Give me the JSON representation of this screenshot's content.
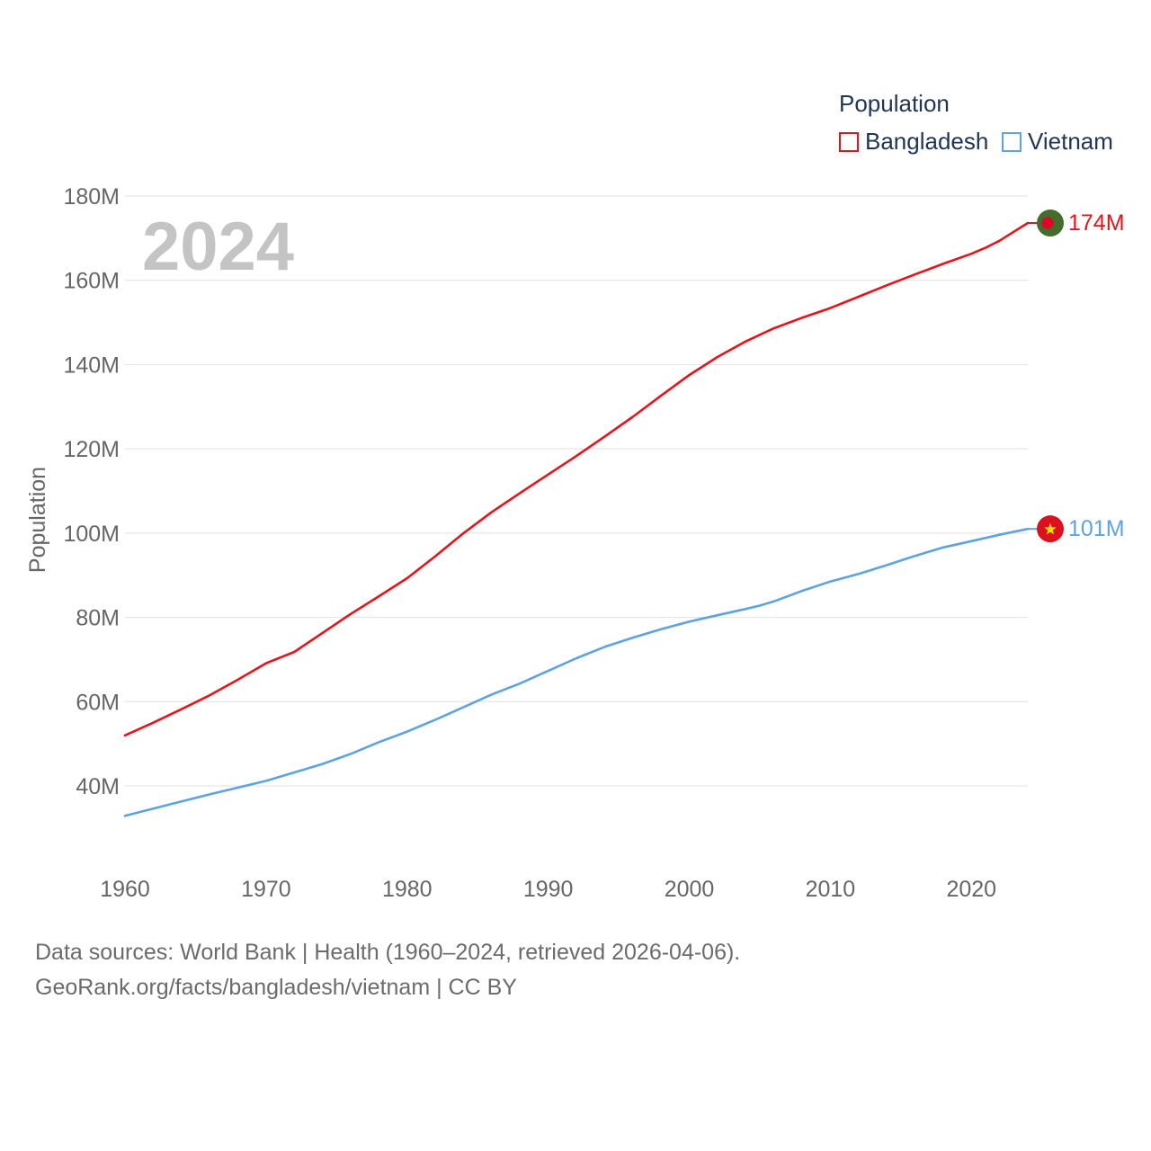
{
  "chart_data": {
    "type": "line",
    "title": "",
    "xlabel": "",
    "ylabel": "Population",
    "current_year": "2024",
    "xlim": [
      1960,
      2024
    ],
    "ylim": [
      27,
      180
    ],
    "x_ticks": [
      {
        "value": 1960,
        "label": "1960"
      },
      {
        "value": 1970,
        "label": "1970"
      },
      {
        "value": 1980,
        "label": "1980"
      },
      {
        "value": 1990,
        "label": "1990"
      },
      {
        "value": 2000,
        "label": "2000"
      },
      {
        "value": 2010,
        "label": "2010"
      },
      {
        "value": 2020,
        "label": "2020"
      }
    ],
    "y_ticks": [
      {
        "value": 40,
        "label": "40M"
      },
      {
        "value": 60,
        "label": "60M"
      },
      {
        "value": 80,
        "label": "80M"
      },
      {
        "value": 100,
        "label": "100M"
      },
      {
        "value": 120,
        "label": "120M"
      },
      {
        "value": 140,
        "label": "140M"
      },
      {
        "value": 160,
        "label": "160M"
      },
      {
        "value": 180,
        "label": "180M"
      }
    ],
    "grid": true,
    "legend": {
      "title": "Population",
      "position": "top-right",
      "entries": [
        {
          "label": "Bangladesh",
          "color": "#e8131a"
        },
        {
          "label": "Vietnam",
          "color": "#5da3e3"
        }
      ]
    },
    "series": [
      {
        "name": "Bangladesh",
        "color": "#e8131a",
        "end_label": "174M",
        "flag_icon": "bangladesh-flag-icon",
        "x": [
          1960,
          1962,
          1964,
          1966,
          1968,
          1970,
          1972,
          1974,
          1976,
          1978,
          1980,
          1982,
          1984,
          1986,
          1988,
          1990,
          1992,
          1994,
          1996,
          1998,
          2000,
          2002,
          2004,
          2006,
          2008,
          2010,
          2012,
          2014,
          2016,
          2018,
          2020,
          2021,
          2022,
          2023,
          2024
        ],
        "values": [
          52.0,
          55.0,
          58.2,
          61.5,
          65.2,
          69.1,
          71.8,
          76.3,
          80.8,
          85.0,
          89.3,
          94.5,
          100.0,
          105.0,
          109.5,
          113.9,
          118.3,
          122.9,
          127.6,
          132.6,
          137.5,
          141.8,
          145.5,
          148.6,
          151.1,
          153.4,
          156.1,
          158.8,
          161.4,
          163.9,
          166.3,
          167.7,
          169.4,
          171.5,
          173.6
        ]
      },
      {
        "name": "Vietnam",
        "color": "#5da3e3",
        "end_label": "101M",
        "flag_icon": "vietnam-flag-icon",
        "x": [
          1960,
          1962,
          1964,
          1966,
          1968,
          1970,
          1972,
          1974,
          1976,
          1978,
          1980,
          1982,
          1984,
          1986,
          1988,
          1990,
          1992,
          1994,
          1996,
          1998,
          2000,
          2002,
          2004,
          2005,
          2006,
          2008,
          2010,
          2012,
          2014,
          2016,
          2018,
          2020,
          2022,
          2024
        ],
        "values": [
          32.9,
          34.6,
          36.3,
          38.0,
          39.6,
          41.2,
          43.2,
          45.2,
          47.6,
          50.4,
          52.9,
          55.7,
          58.7,
          61.7,
          64.3,
          67.3,
          70.3,
          73.0,
          75.2,
          77.2,
          79.0,
          80.5,
          82.0,
          82.8,
          83.8,
          86.3,
          88.5,
          90.3,
          92.4,
          94.6,
          96.6,
          98.1,
          99.6,
          101.0
        ]
      }
    ]
  },
  "source_line_1": "Data sources: World Bank | Health (1960–2024, retrieved 2026-04-06).",
  "source_line_2": "GeoRank.org/facts/bangladesh/vietnam | CC BY"
}
